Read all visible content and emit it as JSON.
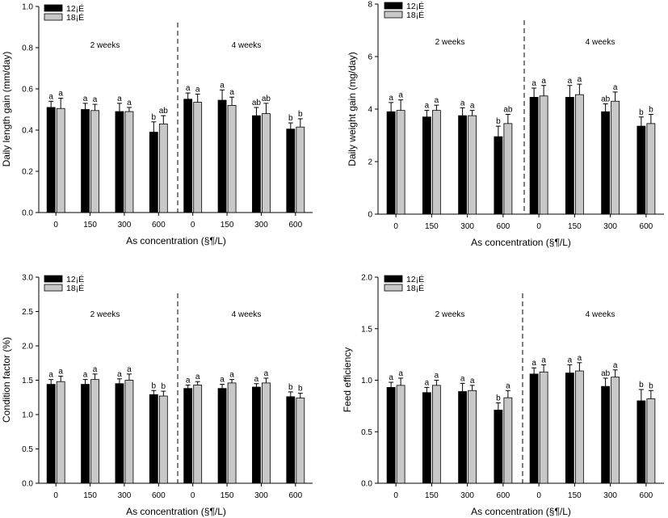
{
  "colors": {
    "temp_12": "#000000",
    "temp_18": "#c8c8c8"
  },
  "chart_data": [
    {
      "type": "bar",
      "ylabel": "Daily length gain (mm/day)",
      "xlabel": "As concentration (§¶/L)",
      "ylim": [
        0,
        1.0
      ],
      "yticks": [
        "0.0",
        "0.2",
        "0.4",
        "0.6",
        "0.8",
        "1.0"
      ],
      "ytick_values": [
        0,
        0.2,
        0.4,
        0.6,
        0.8,
        1.0
      ],
      "categories": [
        "0",
        "150",
        "300",
        "600",
        "0",
        "150",
        "300",
        "600"
      ],
      "periods": [
        "2 weeks",
        "4 weeks"
      ],
      "legend": [
        "12¡É",
        "18¡É"
      ],
      "legend_position": "top-left",
      "series": [
        {
          "name": "12¡É",
          "values": [
            0.51,
            0.5,
            0.49,
            0.39,
            0.55,
            0.545,
            0.47,
            0.405
          ],
          "errors": [
            0.03,
            0.03,
            0.04,
            0.05,
            0.03,
            0.05,
            0.04,
            0.03
          ],
          "labels": [
            "a",
            "a",
            "a",
            "b",
            "a",
            "a",
            "ab",
            "b"
          ]
        },
        {
          "name": "18¡É",
          "values": [
            0.505,
            0.495,
            0.49,
            0.43,
            0.535,
            0.52,
            0.48,
            0.415
          ],
          "errors": [
            0.05,
            0.03,
            0.02,
            0.04,
            0.04,
            0.04,
            0.05,
            0.04
          ],
          "labels": [
            "a",
            "a",
            "a",
            "ab",
            "a",
            "a",
            "ab",
            "b"
          ]
        }
      ]
    },
    {
      "type": "bar",
      "ylabel": "Daily weight gain (mg/day)",
      "xlabel": "As concentration (§¶/L)",
      "ylim": [
        0,
        8
      ],
      "yticks": [
        "0",
        "2",
        "4",
        "6",
        "8"
      ],
      "ytick_values": [
        0,
        2,
        4,
        6,
        8
      ],
      "categories": [
        "0",
        "150",
        "300",
        "600",
        "0",
        "150",
        "300",
        "600"
      ],
      "periods": [
        "2 weeks",
        "4 weeks"
      ],
      "legend": [
        "12¡É",
        "18¡É"
      ],
      "legend_position": "top-left",
      "series": [
        {
          "name": "12¡É",
          "values": [
            3.9,
            3.7,
            3.75,
            2.95,
            4.45,
            4.45,
            3.9,
            3.35
          ],
          "errors": [
            0.35,
            0.25,
            0.3,
            0.4,
            0.35,
            0.45,
            0.3,
            0.35
          ],
          "labels": [
            "a",
            "a",
            "a",
            "b",
            "a",
            "a",
            "ab",
            "b"
          ]
        },
        {
          "name": "18¡É",
          "values": [
            3.95,
            3.95,
            3.75,
            3.45,
            4.5,
            4.55,
            4.3,
            3.45
          ],
          "errors": [
            0.4,
            0.2,
            0.2,
            0.35,
            0.4,
            0.4,
            0.35,
            0.35
          ],
          "labels": [
            "a",
            "a",
            "a",
            "ab",
            "a",
            "a",
            "a",
            "b"
          ]
        }
      ]
    },
    {
      "type": "bar",
      "ylabel": "Condition factor (%)",
      "xlabel": "As concentration (§¶/L)",
      "ylim": [
        0,
        3.0
      ],
      "yticks": [
        "0.0",
        "0.5",
        "1.0",
        "1.5",
        "2.0",
        "2.5",
        "3.0"
      ],
      "ytick_values": [
        0,
        0.5,
        1.0,
        1.5,
        2.0,
        2.5,
        3.0
      ],
      "categories": [
        "0",
        "150",
        "300",
        "600",
        "0",
        "150",
        "300",
        "600"
      ],
      "periods": [
        "2 weeks",
        "4 weeks"
      ],
      "legend": [
        "12¡É",
        "18¡É"
      ],
      "legend_position": "top-left",
      "series": [
        {
          "name": "12¡É",
          "values": [
            1.44,
            1.44,
            1.45,
            1.29,
            1.38,
            1.38,
            1.4,
            1.26
          ],
          "errors": [
            0.07,
            0.07,
            0.07,
            0.06,
            0.05,
            0.06,
            0.05,
            0.07
          ],
          "labels": [
            "a",
            "a",
            "a",
            "b",
            "a",
            "a",
            "a",
            "b"
          ]
        },
        {
          "name": "18¡É",
          "values": [
            1.48,
            1.51,
            1.5,
            1.27,
            1.43,
            1.46,
            1.46,
            1.24
          ],
          "errors": [
            0.08,
            0.08,
            0.09,
            0.07,
            0.05,
            0.05,
            0.07,
            0.07
          ],
          "labels": [
            "a",
            "a",
            "a",
            "b",
            "a",
            "a",
            "a",
            "b"
          ]
        }
      ]
    },
    {
      "type": "bar",
      "ylabel": "Feed efficiency",
      "xlabel": "As concentration (§¶/L)",
      "ylim": [
        0,
        2.0
      ],
      "yticks": [
        "0.0",
        "0.5",
        "1.0",
        "1.5",
        "2.0"
      ],
      "ytick_values": [
        0,
        0.5,
        1.0,
        1.5,
        2.0
      ],
      "categories": [
        "0",
        "150",
        "300",
        "600",
        "0",
        "150",
        "300",
        "600"
      ],
      "periods": [
        "2 weeks",
        "4 weeks"
      ],
      "legend": [
        "12¡É",
        "18¡É"
      ],
      "legend_position": "top-left",
      "series": [
        {
          "name": "12¡É",
          "values": [
            0.93,
            0.88,
            0.89,
            0.71,
            1.06,
            1.07,
            0.94,
            0.8
          ],
          "errors": [
            0.05,
            0.05,
            0.08,
            0.07,
            0.06,
            0.08,
            0.08,
            0.11
          ],
          "labels": [
            "a",
            "a",
            "a",
            "b",
            "a",
            "a",
            "ab",
            "b"
          ]
        },
        {
          "name": "18¡É",
          "values": [
            0.95,
            0.95,
            0.9,
            0.83,
            1.08,
            1.09,
            1.03,
            0.82
          ],
          "errors": [
            0.07,
            0.05,
            0.05,
            0.07,
            0.07,
            0.08,
            0.07,
            0.08
          ],
          "labels": [
            "a",
            "a",
            "a",
            "a",
            "a",
            "a",
            "a",
            "b"
          ]
        }
      ]
    }
  ]
}
